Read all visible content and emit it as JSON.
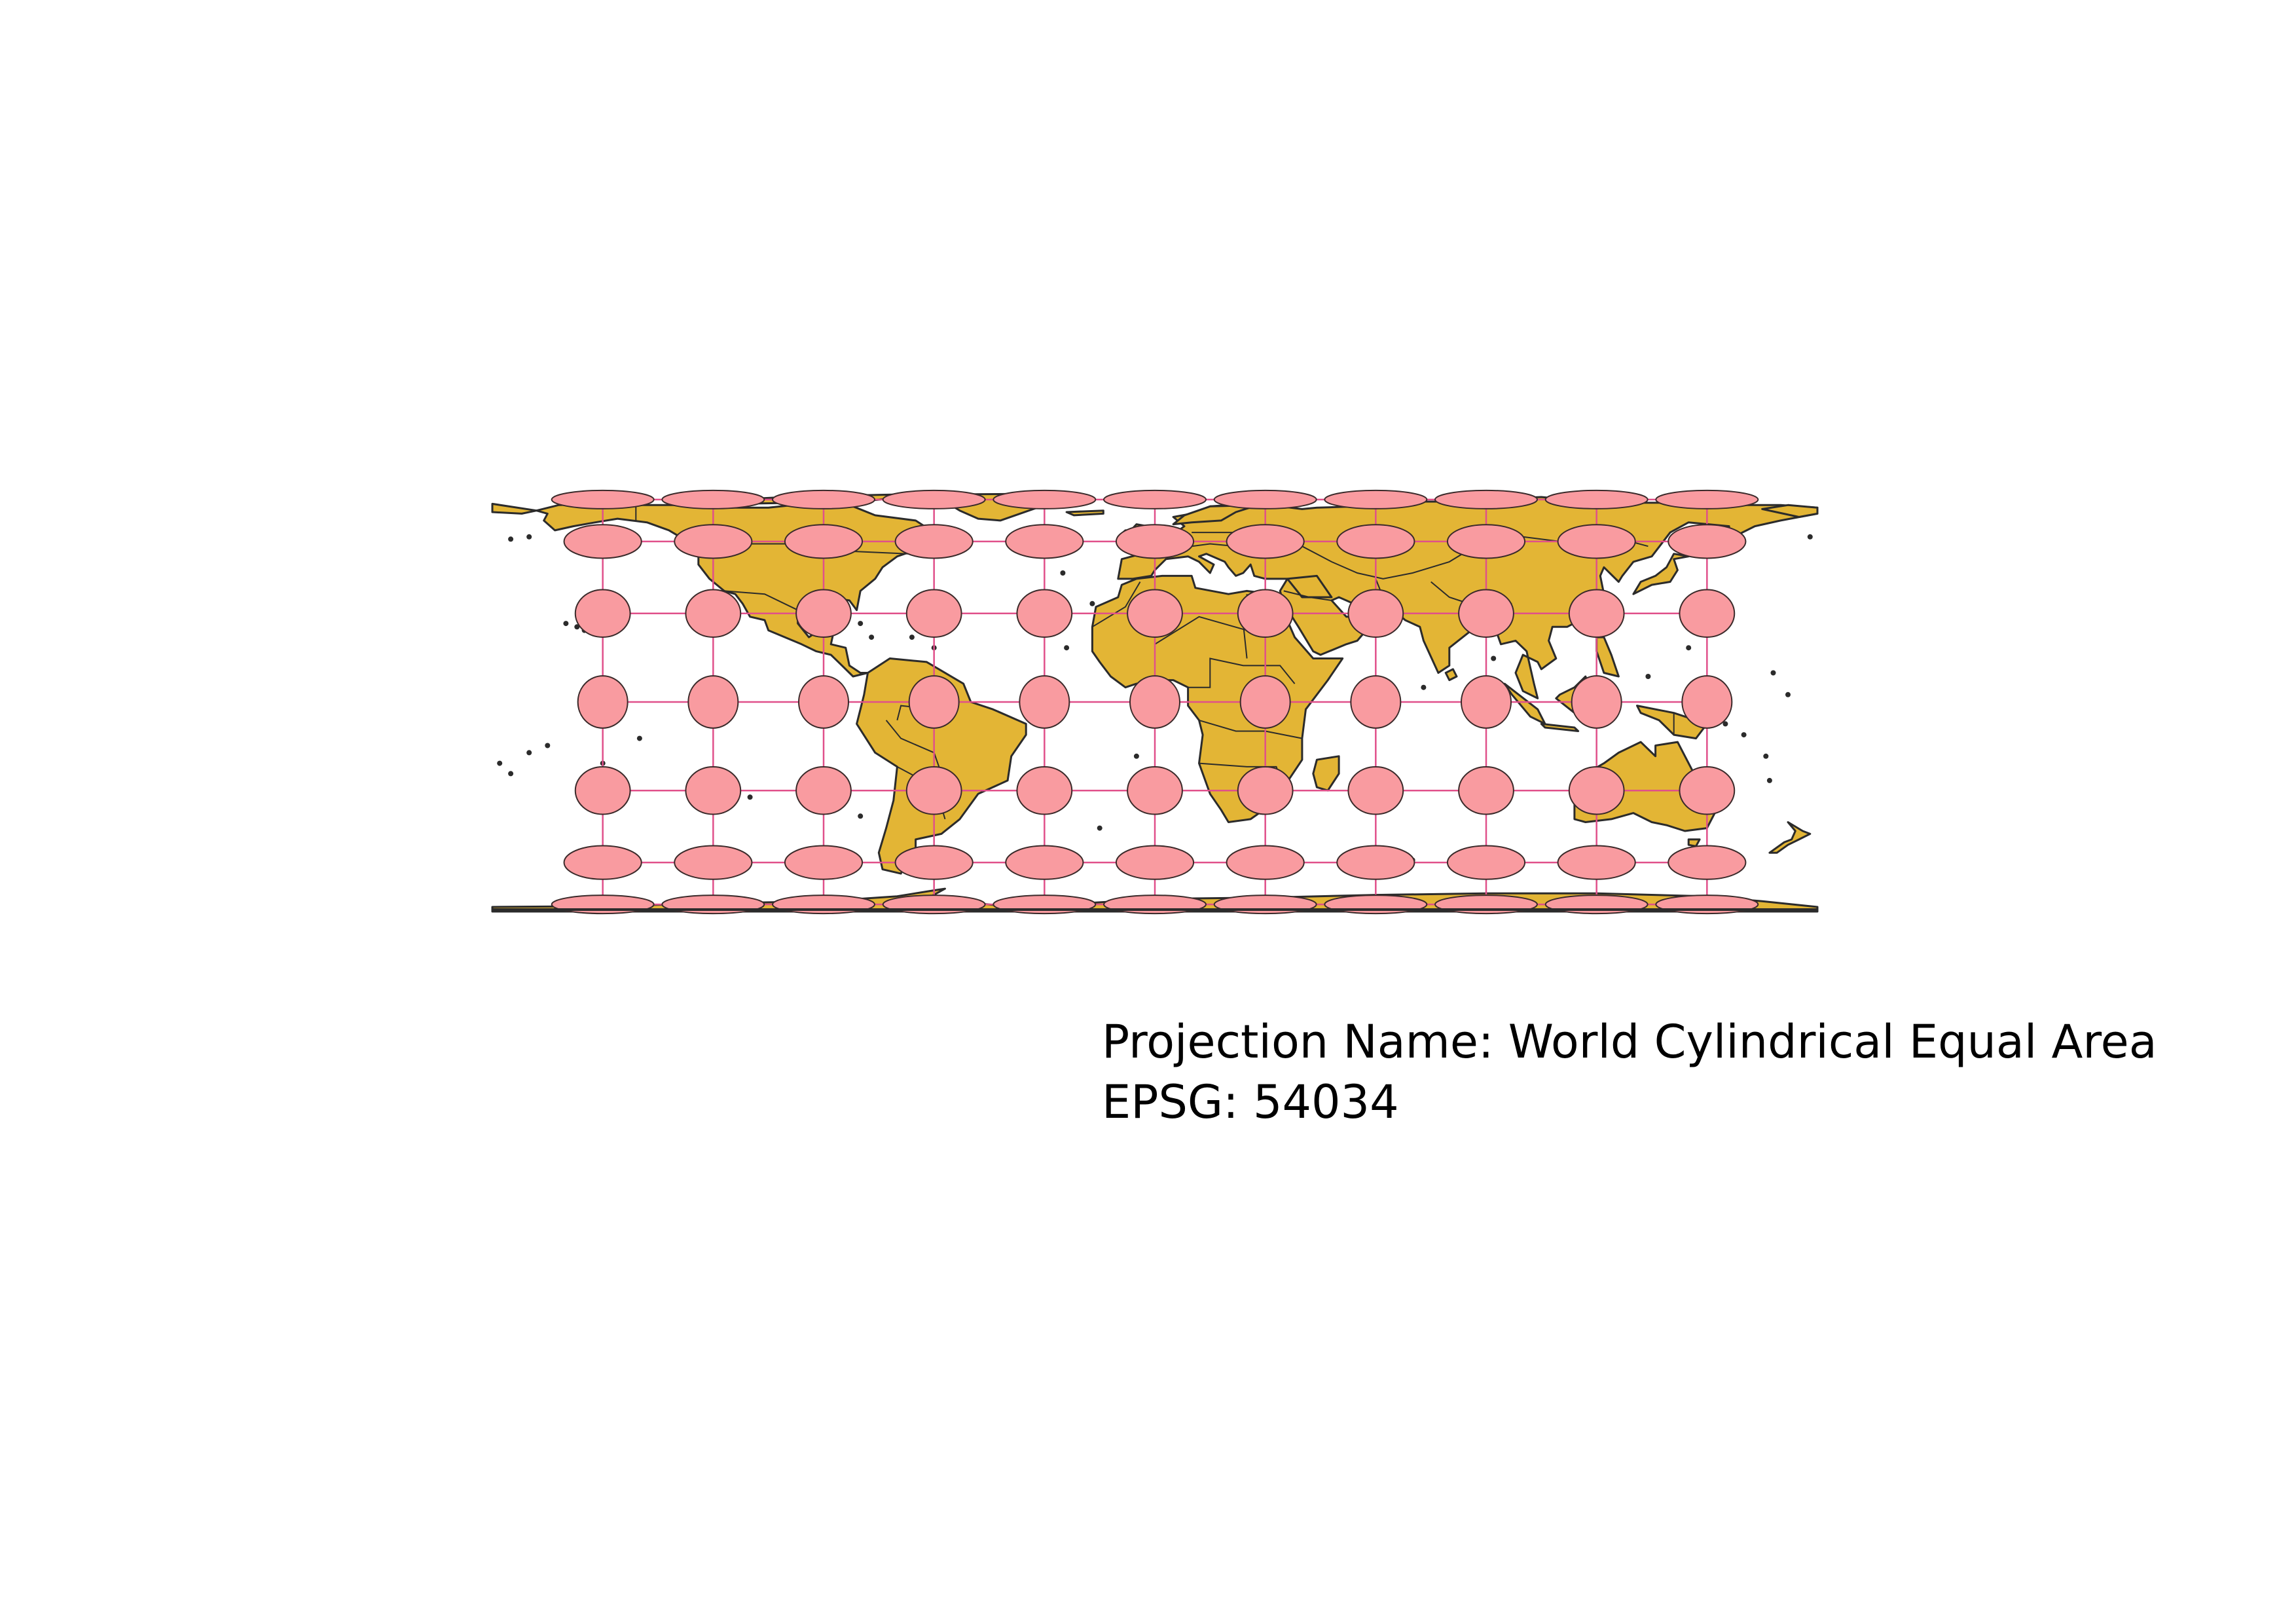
{
  "caption": {
    "projection_label": "Projection Name: World Cylindrical Equal Area",
    "epsg_label": "EPSG: 54034"
  },
  "map": {
    "projection": "World Cylindrical Equal Area",
    "land_color": "#e3b535",
    "border_color": "#2b2b2b",
    "indicatrix_fill": "#f99ba0",
    "graticule_color": "#e0508a",
    "background": "#ffffff",
    "meridians_deg": [
      -150,
      -120,
      -90,
      -60,
      -30,
      0,
      30,
      60,
      90,
      120,
      150
    ],
    "parallels_deg": [
      -75,
      -50,
      -25,
      0,
      25,
      50,
      75
    ],
    "indicatrix_latitudes_deg": [
      -75,
      -50,
      -25,
      0,
      25,
      50,
      75
    ]
  }
}
